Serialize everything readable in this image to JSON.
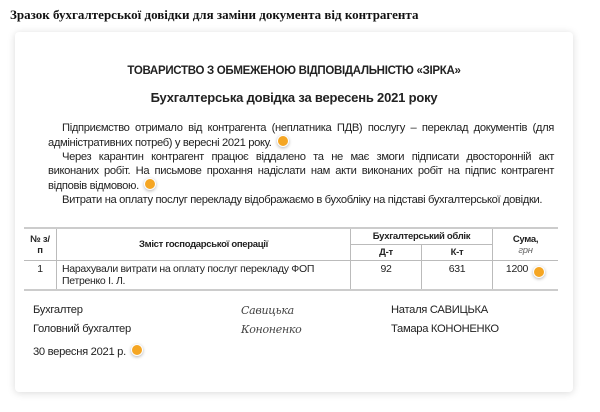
{
  "page_title": "Зразок бухгалтерської довідки для заміни документа від контрагента",
  "document": {
    "organization": "ТОВАРИСТВО З ОБМЕЖЕНОЮ ВІДПОВІДАЛЬНІСТЮ «ЗІРКА»",
    "title": "Бухгалтерська довідка за вересень 2021 року",
    "paragraphs": [
      "Підприємство отримало від контрагента (неплатника ПДВ) послугу – переклад документів (для адміністративних потреб) у вересні 2021 року.",
      "Через карантин контрагент працює віддалено та не має змоги підписати двосторонній акт виконаних робіт. На письмове прохання надіслати нам акти виконаних робіт на підпис контрагент відповів відмовою.",
      "Витрати на оплату послуг перекладу відображаємо в бухобліку на підставі бухгалтерської довідки."
    ],
    "table": {
      "headers": {
        "num": "№ з/п",
        "content": "Зміст господарської операції",
        "accounting": "Бухгалтерський облік",
        "debit": "Д-т",
        "credit": "К-т",
        "sum": "Сума,",
        "sum_unit": "грн"
      },
      "rows": [
        {
          "num": "1",
          "content": "Нарахували витрати на оплату послуг перекладу ФОП Петренко І. Л.",
          "debit": "92",
          "credit": "631",
          "sum": "1200"
        }
      ]
    },
    "signatures": [
      {
        "role": "Бухгалтер",
        "signature": "Савицька",
        "name": "Наталя САВИЦЬКА"
      },
      {
        "role": "Головний бухгалтер",
        "signature": "Кононенко",
        "name": "Тамара КОНОНЕНКО"
      }
    ],
    "date": "30 вересня 2021 р."
  },
  "colors": {
    "marker": "#f5a623"
  }
}
